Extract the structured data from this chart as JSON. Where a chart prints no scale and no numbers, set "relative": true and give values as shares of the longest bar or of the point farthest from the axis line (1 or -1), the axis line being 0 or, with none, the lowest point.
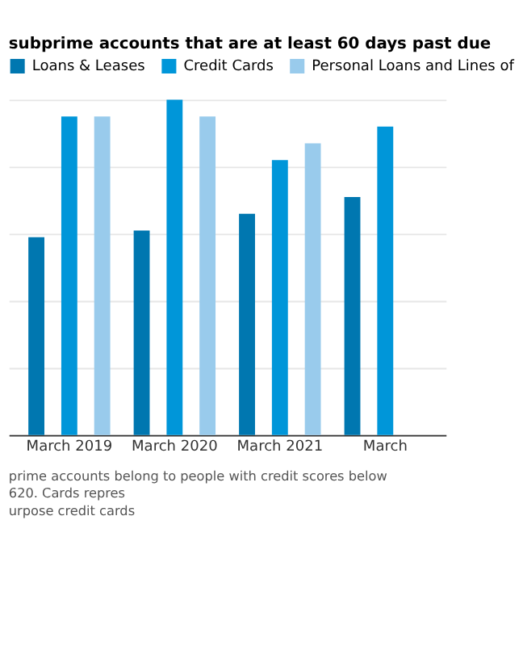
{
  "chart_data": {
    "type": "bar",
    "title": "subprime accounts that are at least 60 days past due",
    "categories": [
      "March 2019",
      "March 2020",
      "March 2021",
      "March"
    ],
    "relative": true,
    "grid": "y",
    "legend": "top",
    "series": [
      {
        "name": "Loans & Leases",
        "color": "#0077b0",
        "values": [
          0.59,
          0.61,
          0.66,
          0.71
        ]
      },
      {
        "name": "Credit Cards",
        "color": "#0096d9",
        "values": [
          0.95,
          1,
          0.82,
          0.92
        ]
      },
      {
        "name": "Personal Loans and Lines of",
        "color": "#99cbec",
        "values": [
          0.95,
          0.95,
          0.87,
          null
        ]
      }
    ],
    "annotations": [
      "prime accounts belong to people with credit scores below 620. Cards repres",
      "urpose credit cards"
    ]
  }
}
